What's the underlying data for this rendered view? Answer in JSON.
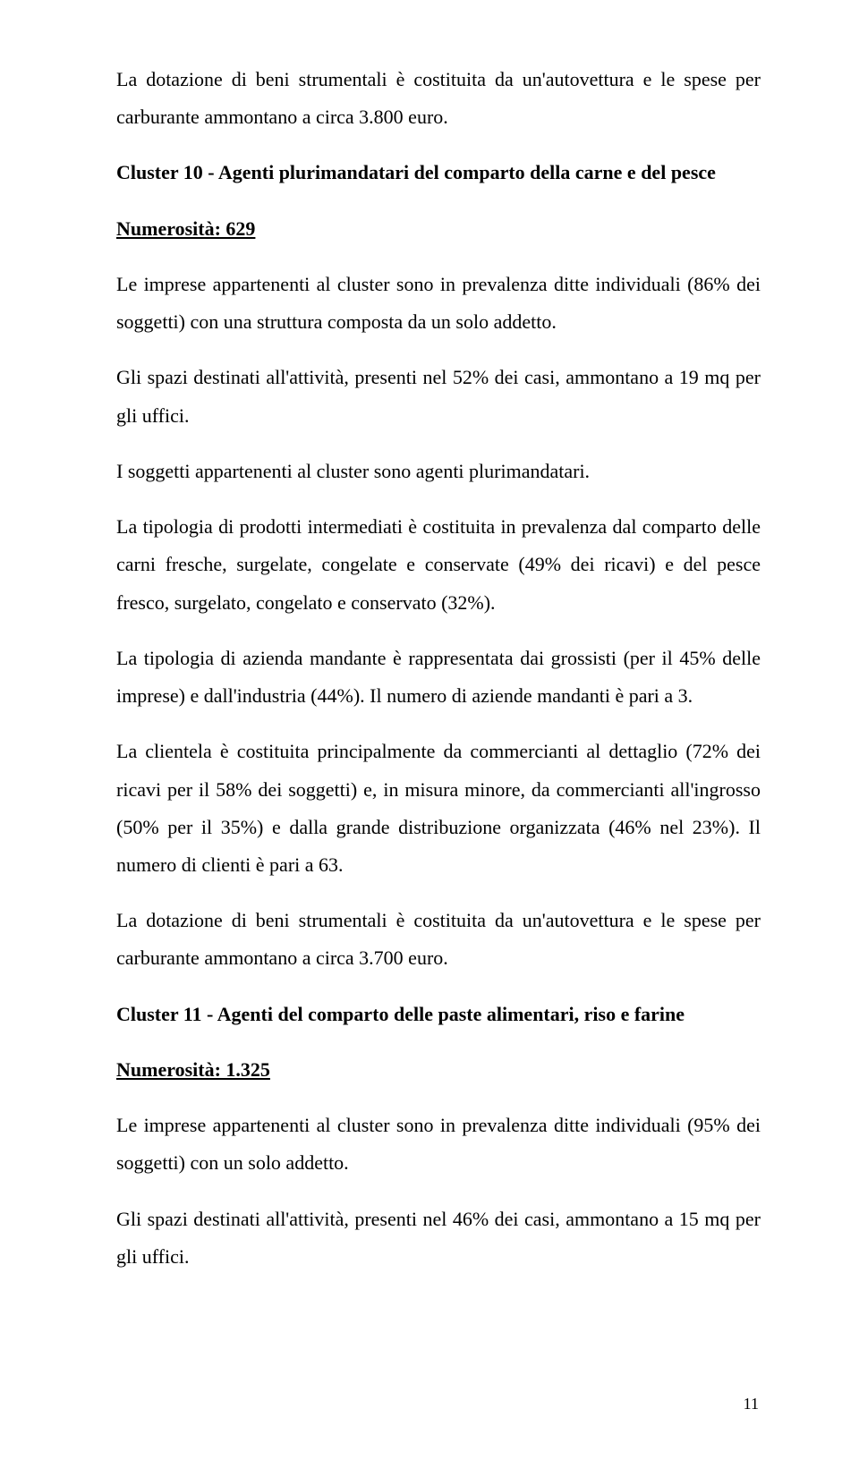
{
  "page": {
    "number": "11"
  },
  "p1": "La dotazione di beni strumentali è costituita da un'autovettura e le spese per carburante ammontano a  circa 3.800 euro.",
  "cluster10": {
    "title": "Cluster 10 - Agenti plurimandatari del comparto della carne e del pesce",
    "numerosita_label": "Numerosità: 629",
    "p1": "Le imprese appartenenti al cluster sono in prevalenza ditte individuali (86% dei soggetti) con una struttura composta da un solo addetto.",
    "p2": "Gli spazi destinati all'attività, presenti nel 52% dei casi, ammontano a 19 mq per gli uffici.",
    "p3": "I soggetti appartenenti al cluster sono agenti plurimandatari.",
    "p4": "La tipologia di prodotti intermediati è costituita in prevalenza dal comparto delle carni fresche, surgelate, congelate e conservate (49% dei ricavi) e del pesce fresco, surgelato, congelato e conservato (32%).",
    "p5": "La tipologia di azienda mandante è rappresentata dai grossisti (per il 45% delle imprese) e dall'industria (44%). Il numero di aziende mandanti è pari a 3.",
    "p6": "La clientela è costituita principalmente da commercianti al dettaglio (72% dei ricavi per il 58% dei soggetti) e, in misura minore, da commercianti all'ingrosso (50% per il 35%) e dalla grande distribuzione organizzata (46% nel 23%). Il numero di clienti è pari a 63.",
    "p7": "La dotazione di beni strumentali è costituita da un'autovettura e le spese per carburante ammontano a circa 3.700 euro."
  },
  "cluster11": {
    "title": "Cluster 11 - Agenti del comparto delle paste alimentari, riso e farine",
    "numerosita_label": "Numerosità: 1.325",
    "p1": "Le imprese appartenenti al cluster sono in prevalenza ditte individuali (95% dei soggetti) con un solo addetto.",
    "p2": "Gli spazi destinati all'attività, presenti nel 46% dei casi, ammontano a 15 mq per gli uffici."
  }
}
